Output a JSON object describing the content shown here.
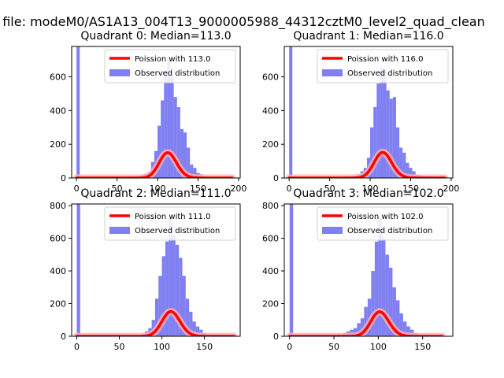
{
  "figure": {
    "suptitle": "n file: modeM0/AS1A13_004T13_9000005988_44312cztM0_level2_quad_clean"
  },
  "colors": {
    "observed": "#8080f2",
    "poisson": "#ff0000",
    "poisson_glow": "#ffb0b0"
  },
  "chart_data": [
    {
      "type": "bar",
      "title": "Quadrant 0: Median=113.0",
      "xlim": [
        -6,
        202
      ],
      "ylim": [
        0,
        780
      ],
      "xticks": [
        0,
        50,
        100,
        150,
        200
      ],
      "yticks": [
        0,
        200,
        400,
        600
      ],
      "legend": {
        "placement": "upper-right",
        "entries": [
          "Poission with 113.0",
          "Observed distribution"
        ]
      },
      "observed": {
        "name": "Observed distribution",
        "bin_width": 4,
        "bins": [
          [
            0,
            780
          ],
          [
            4,
            0
          ],
          [
            60,
            4
          ],
          [
            64,
            6
          ],
          [
            68,
            4
          ],
          [
            72,
            8
          ],
          [
            76,
            8
          ],
          [
            80,
            18
          ],
          [
            84,
            25
          ],
          [
            88,
            35
          ],
          [
            92,
            95
          ],
          [
            96,
            160
          ],
          [
            100,
            310
          ],
          [
            104,
            460
          ],
          [
            108,
            620
          ],
          [
            112,
            720
          ],
          [
            116,
            600
          ],
          [
            120,
            480
          ],
          [
            124,
            420
          ],
          [
            128,
            290
          ],
          [
            132,
            270
          ],
          [
            136,
            180
          ],
          [
            140,
            80
          ],
          [
            144,
            60
          ],
          [
            148,
            30
          ],
          [
            152,
            22
          ],
          [
            156,
            10
          ],
          [
            160,
            6
          ],
          [
            164,
            4
          ],
          [
            168,
            2
          ],
          [
            172,
            1
          ],
          [
            176,
            1
          ],
          [
            180,
            1
          ]
        ]
      },
      "poisson": {
        "name": "Poission with 113.0",
        "lambda": 113.0,
        "x_range": [
          0,
          192
        ],
        "scale": 4000
      }
    },
    {
      "type": "bar",
      "title": "Quadrant 1: Median=116.0",
      "xlim": [
        -6,
        202
      ],
      "ylim": [
        0,
        780
      ],
      "xticks": [
        0,
        50,
        100,
        150,
        200
      ],
      "yticks": [
        0,
        200,
        400,
        600
      ],
      "legend": {
        "placement": "upper-right",
        "entries": [
          "Poission with 116.0",
          "Observed distribution"
        ]
      },
      "observed": {
        "name": "Observed distribution",
        "bin_width": 4,
        "bins": [
          [
            0,
            780
          ],
          [
            4,
            0
          ],
          [
            60,
            4
          ],
          [
            64,
            6
          ],
          [
            68,
            6
          ],
          [
            72,
            8
          ],
          [
            76,
            10
          ],
          [
            80,
            14
          ],
          [
            84,
            22
          ],
          [
            88,
            40
          ],
          [
            92,
            60
          ],
          [
            96,
            120
          ],
          [
            100,
            300
          ],
          [
            104,
            420
          ],
          [
            108,
            560
          ],
          [
            112,
            650
          ],
          [
            116,
            640
          ],
          [
            120,
            520
          ],
          [
            124,
            470
          ],
          [
            128,
            480
          ],
          [
            132,
            300
          ],
          [
            136,
            180
          ],
          [
            140,
            150
          ],
          [
            144,
            90
          ],
          [
            148,
            60
          ],
          [
            152,
            40
          ],
          [
            156,
            20
          ],
          [
            160,
            15
          ],
          [
            164,
            10
          ],
          [
            168,
            8
          ],
          [
            172,
            4
          ],
          [
            176,
            2
          ],
          [
            180,
            1
          ]
        ]
      },
      "poisson": {
        "name": "Poission with 116.0",
        "lambda": 116.0,
        "x_range": [
          0,
          192
        ],
        "scale": 4100
      }
    },
    {
      "type": "bar",
      "title": "Quadrant 2: Median=111.0",
      "xlim": [
        -6,
        192
      ],
      "ylim": [
        0,
        810
      ],
      "xticks": [
        0,
        50,
        100,
        150
      ],
      "yticks": [
        0,
        200,
        400,
        600,
        800
      ],
      "legend": {
        "placement": "upper-right",
        "entries": [
          "Poission with 111.0",
          "Observed distribution"
        ]
      },
      "observed": {
        "name": "Observed distribution",
        "bin_width": 4,
        "bins": [
          [
            0,
            810
          ],
          [
            4,
            0
          ],
          [
            64,
            4
          ],
          [
            68,
            6
          ],
          [
            72,
            10
          ],
          [
            76,
            15
          ],
          [
            80,
            30
          ],
          [
            84,
            50
          ],
          [
            88,
            100
          ],
          [
            92,
            230
          ],
          [
            96,
            370
          ],
          [
            100,
            490
          ],
          [
            104,
            580
          ],
          [
            108,
            730
          ],
          [
            112,
            620
          ],
          [
            116,
            560
          ],
          [
            120,
            480
          ],
          [
            124,
            370
          ],
          [
            128,
            230
          ],
          [
            132,
            150
          ],
          [
            136,
            90
          ],
          [
            140,
            60
          ],
          [
            144,
            40
          ],
          [
            148,
            20
          ],
          [
            152,
            10
          ],
          [
            156,
            6
          ],
          [
            160,
            3
          ],
          [
            164,
            1
          ]
        ]
      },
      "poisson": {
        "name": "Poission with 111.0",
        "lambda": 111.0,
        "x_range": [
          0,
          185
        ],
        "scale": 4000
      }
    },
    {
      "type": "bar",
      "title": "Quadrant 3: Median=102.0",
      "xlim": [
        -6,
        184
      ],
      "ylim": [
        0,
        810
      ],
      "xticks": [
        0,
        50,
        100,
        150
      ],
      "yticks": [
        0,
        200,
        400,
        600,
        800
      ],
      "legend": {
        "placement": "upper-right",
        "entries": [
          "Poission with 102.0",
          "Observed distribution"
        ]
      },
      "observed": {
        "name": "Observed distribution",
        "bin_width": 4,
        "bins": [
          [
            0,
            810
          ],
          [
            4,
            0
          ],
          [
            60,
            20
          ],
          [
            64,
            30
          ],
          [
            68,
            40
          ],
          [
            72,
            50
          ],
          [
            76,
            80
          ],
          [
            80,
            110
          ],
          [
            84,
            180
          ],
          [
            88,
            230
          ],
          [
            92,
            400
          ],
          [
            96,
            580
          ],
          [
            100,
            730
          ],
          [
            104,
            600
          ],
          [
            108,
            500
          ],
          [
            112,
            420
          ],
          [
            116,
            300
          ],
          [
            120,
            220
          ],
          [
            124,
            140
          ],
          [
            128,
            90
          ],
          [
            132,
            60
          ],
          [
            136,
            40
          ],
          [
            140,
            20
          ],
          [
            144,
            10
          ],
          [
            148,
            4
          ],
          [
            152,
            2
          ]
        ]
      },
      "poisson": {
        "name": "Poission with 102.0",
        "lambda": 102.0,
        "x_range": [
          0,
          172
        ],
        "scale": 3800
      }
    }
  ]
}
